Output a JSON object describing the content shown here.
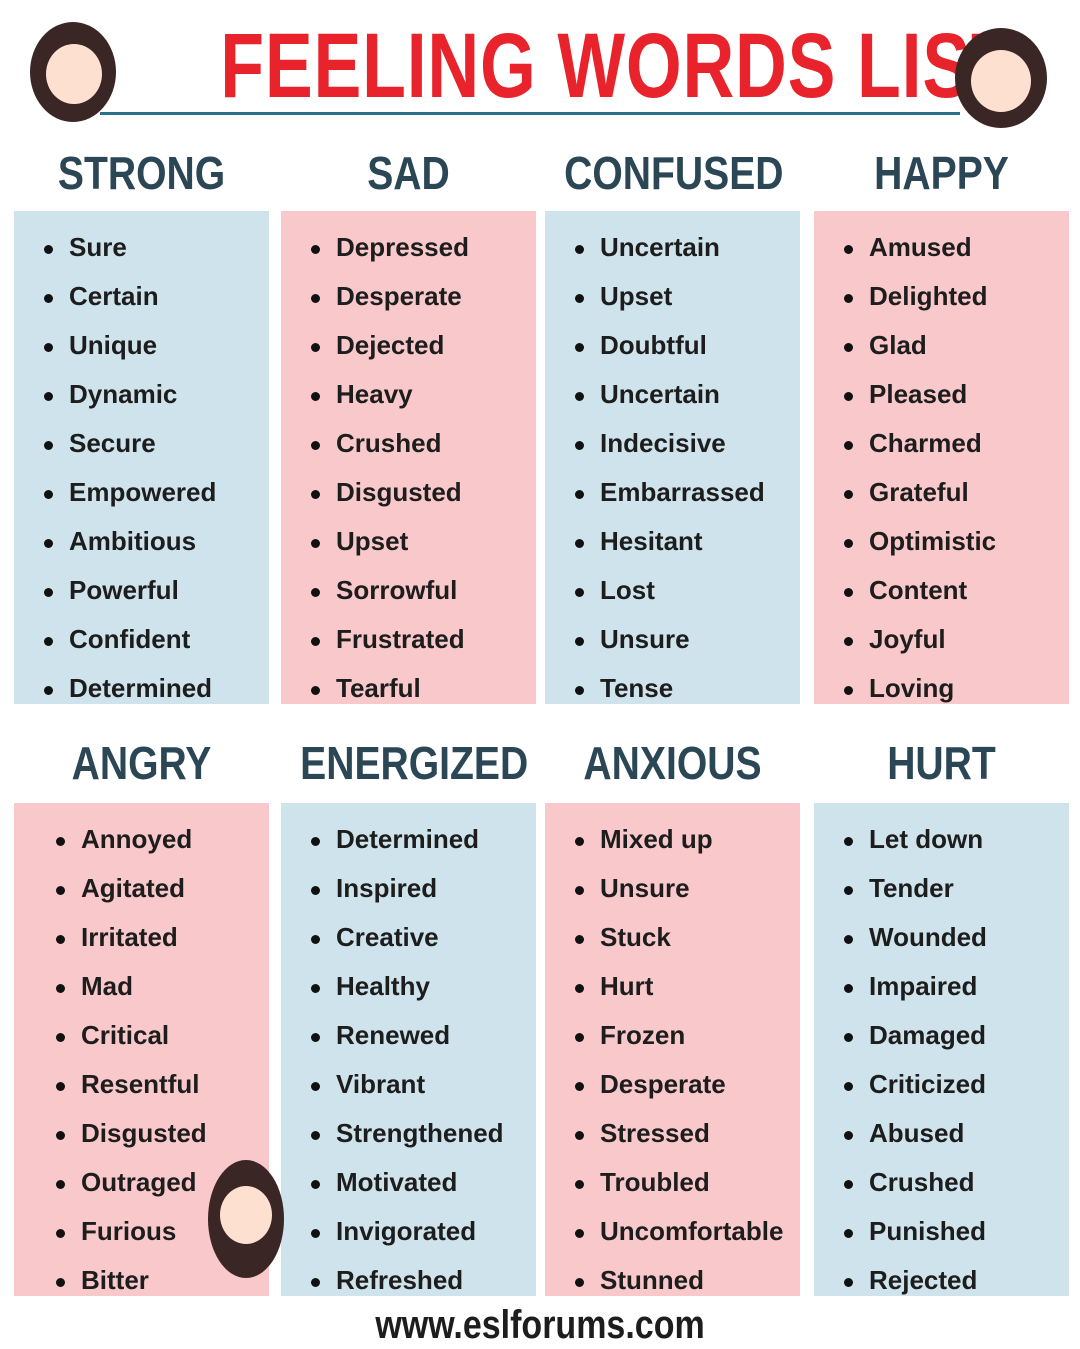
{
  "title": "FEELING WORDS LIST",
  "footer": "www.eslforums.com",
  "colors": {
    "title": "#e8232b",
    "heading": "#2b4756",
    "blue_box": "#cfe3ec",
    "pink_box": "#f9c8cb"
  },
  "categories": [
    {
      "heading": "STRONG",
      "color": "blue",
      "words": [
        "Sure",
        "Certain",
        "Unique",
        "Dynamic",
        "Secure",
        "Empowered",
        "Ambitious",
        "Powerful",
        "Confident",
        "Determined"
      ]
    },
    {
      "heading": "SAD",
      "color": "pink",
      "words": [
        "Depressed",
        "Desperate",
        "Dejected",
        "Heavy",
        "Crushed",
        "Disgusted",
        "Upset",
        "Sorrowful",
        "Frustrated",
        "Tearful"
      ]
    },
    {
      "heading": "CONFUSED",
      "color": "blue",
      "words": [
        "Uncertain",
        "Upset",
        "Doubtful",
        "Uncertain",
        "Indecisive",
        "Embarrassed",
        "Hesitant",
        "Lost",
        "Unsure",
        "Tense"
      ]
    },
    {
      "heading": "HAPPY",
      "color": "pink",
      "words": [
        "Amused",
        "Delighted",
        "Glad",
        "Pleased",
        "Charmed",
        "Grateful",
        "Optimistic",
        "Content",
        "Joyful",
        "Loving"
      ]
    },
    {
      "heading": "ANGRY",
      "color": "pink",
      "words": [
        "Annoyed",
        "Agitated",
        "Irritated",
        "Mad",
        "Critical",
        "Resentful",
        "Disgusted",
        "Outraged",
        "Furious",
        "Bitter"
      ]
    },
    {
      "heading": "ENERGIZED",
      "color": "blue",
      "words": [
        "Determined",
        "Inspired",
        "Creative",
        "Healthy",
        "Renewed",
        "Vibrant",
        "Strengthened",
        "Motivated",
        "Invigorated",
        "Refreshed"
      ]
    },
    {
      "heading": "ANXIOUS",
      "color": "pink",
      "words": [
        "Mixed up",
        "Unsure",
        "Stuck",
        "Hurt",
        "Frozen",
        "Desperate",
        "Stressed",
        "Troubled",
        "Uncomfortable",
        "Stunned"
      ]
    },
    {
      "heading": "HURT",
      "color": "blue",
      "words": [
        "Let down",
        "Tender",
        "Wounded",
        "Impaired",
        "Damaged",
        "Criticized",
        "Abused",
        "Crushed",
        "Punished",
        "Rejected"
      ]
    }
  ]
}
